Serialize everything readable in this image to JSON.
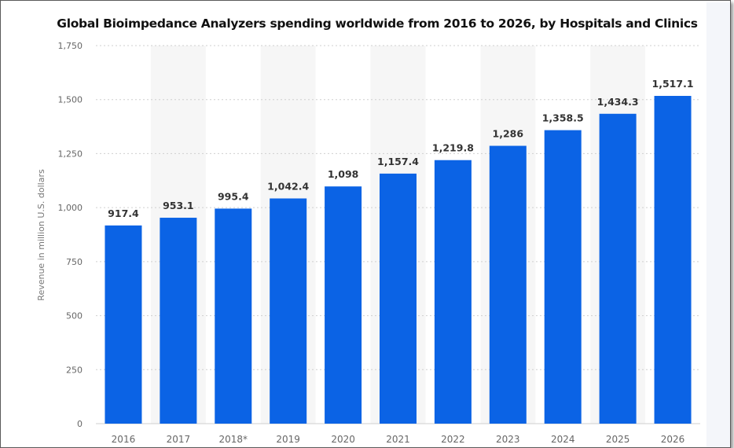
{
  "chart_data": {
    "type": "bar",
    "title": "Global Bioimpedance Analyzers spending worldwide from 2016 to 2026, by Hospitals and Clinics",
    "xlabel": "",
    "ylabel": "Revenue in million U.S. dollars",
    "categories": [
      "2016",
      "2017",
      "2018*",
      "2019",
      "2020",
      "2021",
      "2022",
      "2023",
      "2024",
      "2025",
      "2026"
    ],
    "values": [
      917.4,
      953.1,
      995.4,
      1042.4,
      1098,
      1157.4,
      1219.8,
      1286,
      1358.5,
      1434.3,
      1517.1
    ],
    "value_labels": [
      "917.4",
      "953.1",
      "995.4",
      "1,042.4",
      "1,098",
      "1,157.4",
      "1,219.8",
      "1,286",
      "1,358.5",
      "1,434.3",
      "1,517.1"
    ],
    "yticks": [
      0,
      250,
      500,
      750,
      1000,
      1250,
      1500,
      1750
    ],
    "ytick_labels": [
      "0",
      "250",
      "500",
      "750",
      "1,000",
      "1,250",
      "1,500",
      "1,750"
    ],
    "ylim": [
      0,
      1750
    ],
    "grid": true,
    "colors": {
      "bar": "#0b63e5",
      "alt_band": "#f6f6f6",
      "grid": "#cfcfcf"
    }
  }
}
